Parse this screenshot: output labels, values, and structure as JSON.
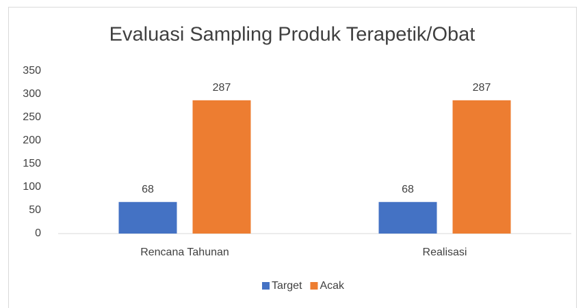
{
  "chart_data": {
    "type": "bar",
    "title": "Evaluasi Sampling Produk Terapetik/Obat",
    "categories": [
      "Rencana Tahunan",
      "Realisasi"
    ],
    "series": [
      {
        "name": "Target",
        "color": "#4472c4",
        "values": [
          68,
          68
        ]
      },
      {
        "name": "Acak",
        "color": "#ed7d31",
        "values": [
          287,
          287
        ]
      }
    ],
    "ylim": [
      0,
      350
    ],
    "yticks": [
      0,
      50,
      100,
      150,
      200,
      250,
      300,
      350
    ],
    "grid": false,
    "legend": "bottom"
  }
}
